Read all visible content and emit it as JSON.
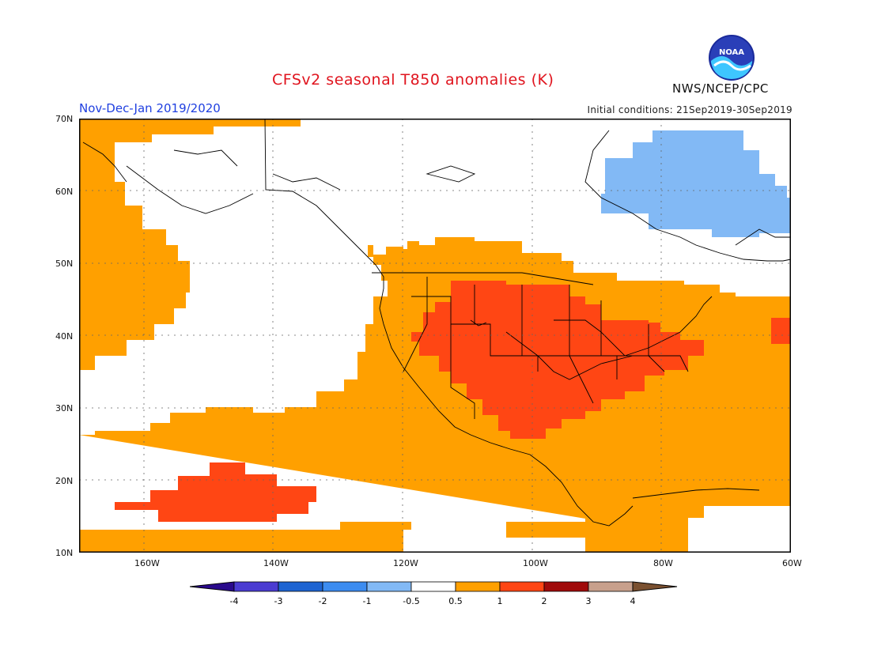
{
  "header": {
    "title": "CFSv2 seasonal T850 anomalies (K)",
    "period": "Nov-Dec-Jan 2019/2020",
    "initial_conditions": "Initial conditions: 21Sep2019-30Sep2019",
    "agency": "NWS/NCEP/CPC",
    "logo_text": "NOAA"
  },
  "map": {
    "lat_labels": [
      "70N",
      "60N",
      "50N",
      "40N",
      "30N",
      "20N",
      "10N"
    ],
    "lon_labels": [
      "160W",
      "140W",
      "120W",
      "100W",
      "80W",
      "60W"
    ],
    "extent": {
      "lon_min": -170,
      "lon_max": -60,
      "lat_min": 10,
      "lat_max": 70
    }
  },
  "colorbar": {
    "labels": [
      "-4",
      "-3",
      "-2",
      "-1",
      "-0.5",
      "0.5",
      "1",
      "2",
      "3",
      "4"
    ],
    "colors": [
      "#2a0a8c",
      "#4b3cd2",
      "#1e64d2",
      "#3c8cf0",
      "#82b9f5",
      "#ffffff",
      "#ffa000",
      "#ff4614",
      "#a00a0a",
      "#c8a08c",
      "#7a5030"
    ]
  }
}
